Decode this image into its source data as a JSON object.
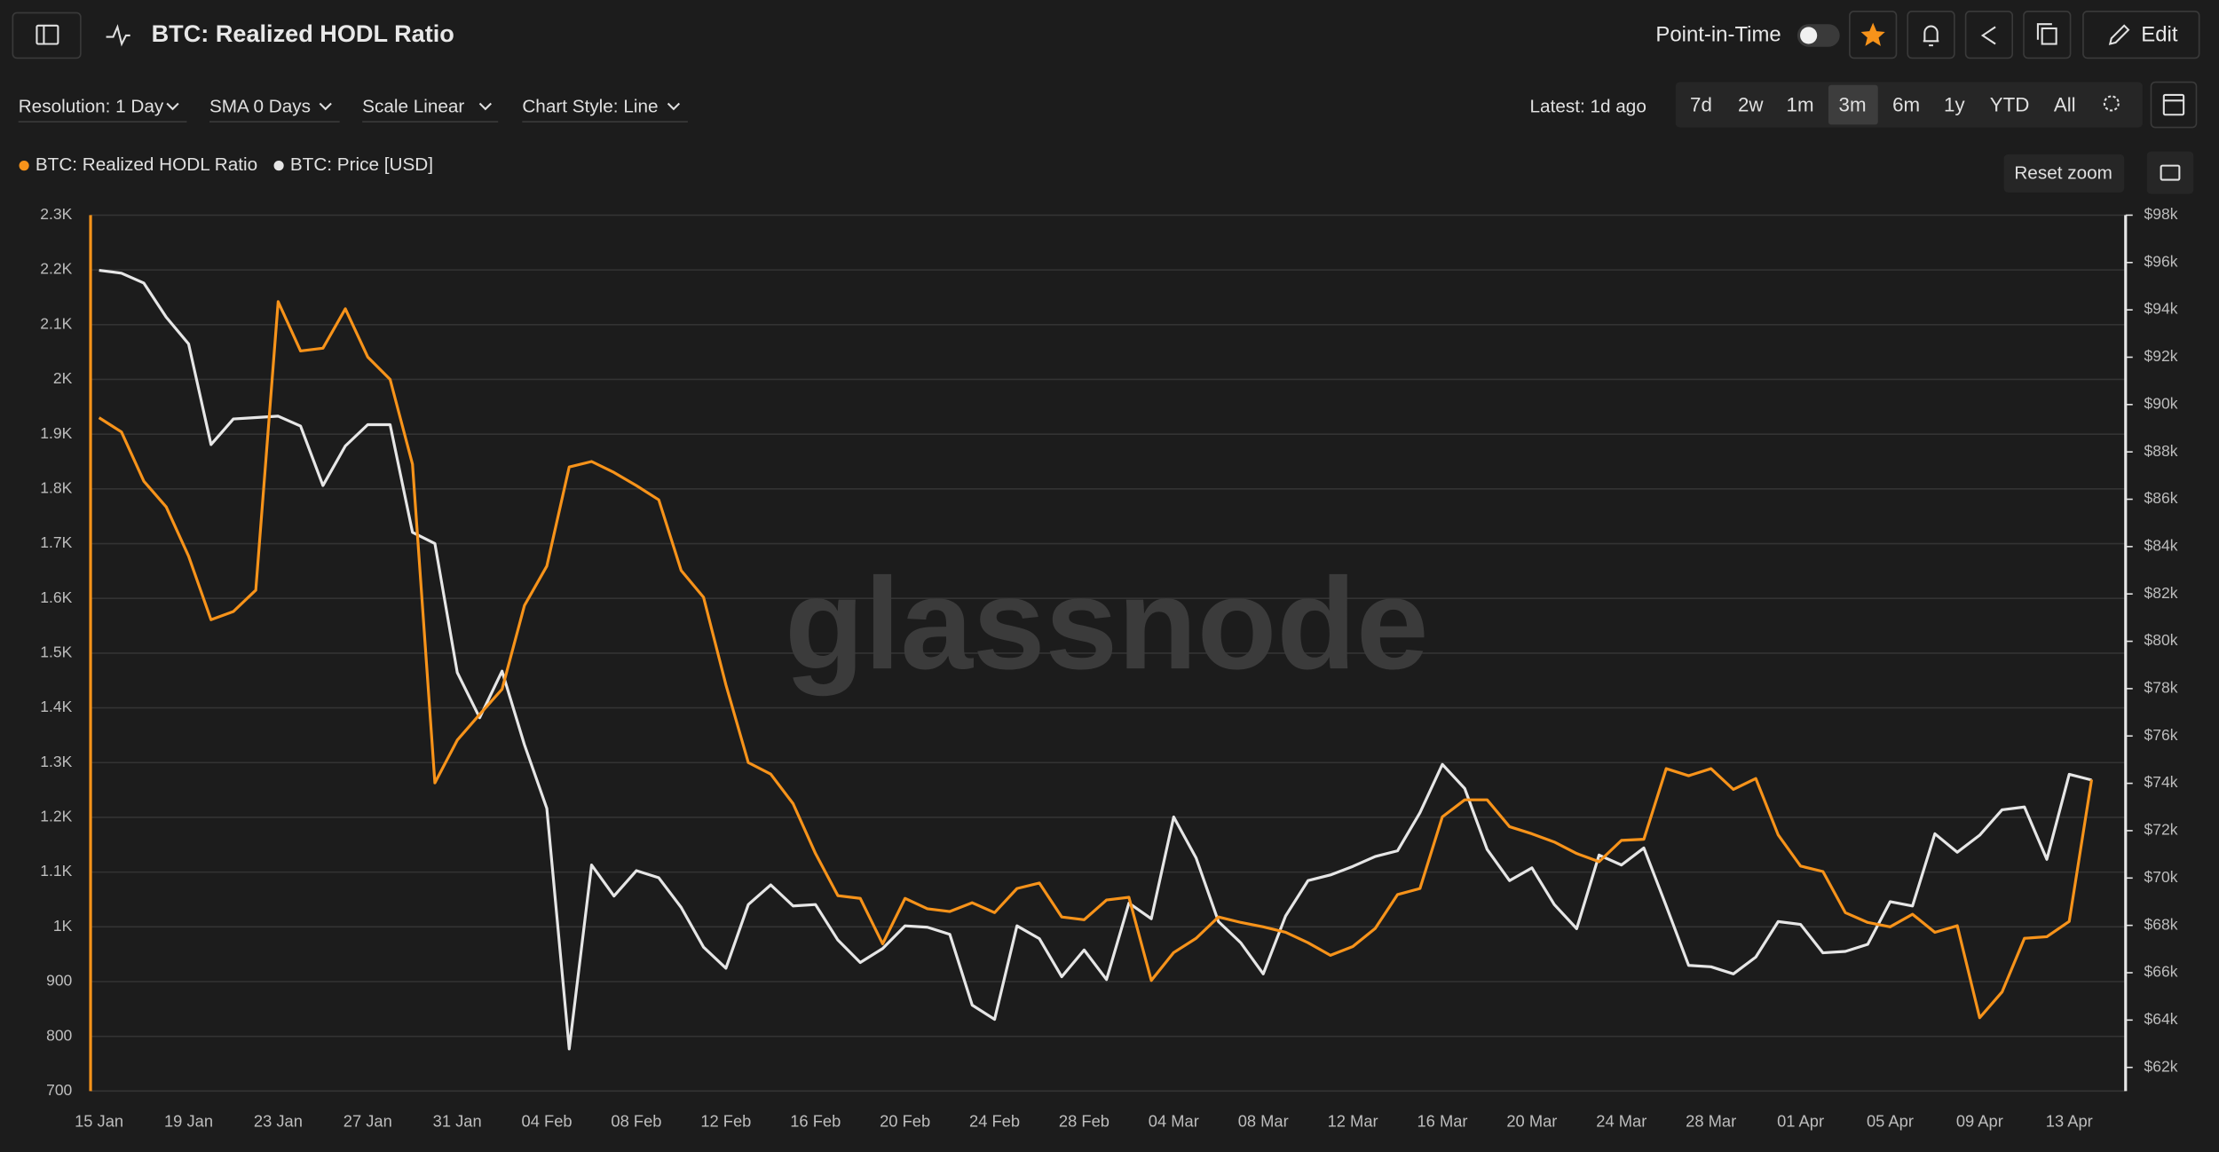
{
  "header": {
    "title": "BTC: Realized HODL Ratio",
    "point_in_time": "Point-in-Time",
    "edit": "Edit"
  },
  "toolbar": {
    "resolution": "Resolution: 1 Day",
    "sma": "SMA 0 Days",
    "scale": "Scale Linear",
    "chart_style": "Chart Style: Line",
    "latest": "Latest: 1d ago",
    "ranges": [
      "7d",
      "2w",
      "1m",
      "3m",
      "6m",
      "1y",
      "YTD",
      "All"
    ],
    "active_range": 3
  },
  "reset_zoom": "Reset zoom",
  "watermark": "glassnode",
  "chart_data": {
    "type": "line",
    "categories": [
      "15 Jan",
      null,
      null,
      null,
      "19 Jan",
      null,
      null,
      null,
      "23 Jan",
      null,
      null,
      null,
      "27 Jan",
      null,
      null,
      null,
      "31 Jan",
      null,
      null,
      null,
      "04 Feb",
      null,
      null,
      null,
      "08 Feb",
      null,
      null,
      null,
      "12 Feb",
      null,
      null,
      null,
      "16 Feb",
      null,
      null,
      null,
      "20 Feb",
      null,
      null,
      null,
      "24 Feb",
      null,
      null,
      null,
      "28 Feb",
      null,
      null,
      null,
      "04 Mar",
      null,
      null,
      null,
      "08 Mar",
      null,
      null,
      null,
      "12 Mar",
      null,
      null,
      null,
      "16 Mar",
      null,
      null,
      null,
      "20 Mar",
      null,
      null,
      null,
      "24 Mar",
      null,
      null,
      null,
      "28 Mar",
      null,
      null,
      null,
      "01 Apr",
      null,
      null,
      null,
      "05 Apr",
      null,
      null,
      null,
      "09 Apr",
      null,
      null,
      null,
      "13 Apr",
      null
    ],
    "series": [
      {
        "name": "BTC: Realized HODL Ratio",
        "color": "#f7931a",
        "axis": "y",
        "values": [
          1930,
          1904,
          1814,
          1767,
          1677,
          1561,
          1576,
          1615,
          2142,
          2052,
          2057,
          2129,
          2041,
          2000,
          1845,
          1263,
          1341,
          1388,
          1434,
          1587,
          1659,
          1840,
          1850,
          1830,
          1806,
          1780,
          1651,
          1602,
          1442,
          1300,
          1279,
          1225,
          1134,
          1057,
          1052,
          969,
          1052,
          1033,
          1028,
          1044,
          1026,
          1070,
          1080,
          1018,
          1013,
          1049,
          1054,
          902,
          953,
          979,
          1018,
          1008,
          1000,
          990,
          971,
          948,
          964,
          997,
          1059,
          1070,
          1201,
          1232,
          1232,
          1183,
          1170,
          1155,
          1134,
          1119,
          1158,
          1160,
          1289,
          1276,
          1289,
          1251,
          1271,
          1168,
          1111,
          1101,
          1026,
          1008,
          1000,
          1023,
          990,
          1002,
          834,
          881,
          979,
          982,
          1010,
          1269
        ]
      },
      {
        "name": "BTC: Price [USD]",
        "color": "#e6e6e6",
        "axis": "y2",
        "values": [
          95.67,
          95.55,
          95.13,
          93.69,
          92.56,
          88.31,
          89.39,
          89.45,
          89.51,
          89.09,
          86.58,
          88.25,
          89.15,
          89.15,
          84.6,
          84.13,
          78.68,
          76.77,
          78.74,
          75.63,
          72.94,
          62.78,
          70.55,
          69.24,
          70.31,
          70.01,
          68.76,
          67.08,
          66.19,
          68.88,
          69.71,
          68.82,
          68.88,
          67.38,
          66.43,
          67.02,
          67.98,
          67.92,
          67.62,
          64.63,
          64.03,
          67.98,
          67.44,
          65.83,
          66.96,
          65.71,
          68.94,
          68.28,
          72.58,
          70.85,
          68.16,
          67.26,
          65.95,
          68.4,
          69.89,
          70.13,
          70.49,
          70.91,
          71.15,
          72.76,
          74.8,
          73.78,
          71.21,
          69.89,
          70.43,
          68.88,
          67.86,
          70.97,
          70.55,
          71.27,
          68.82,
          66.31,
          66.25,
          65.95,
          66.66,
          68.16,
          68.04,
          66.84,
          66.9,
          67.2,
          69.0,
          68.82,
          71.87,
          71.09,
          71.81,
          72.88,
          73.0,
          70.79,
          74.38,
          74.14
        ]
      }
    ],
    "ylim": [
      700,
      2300
    ],
    "yticks": [
      700,
      800,
      900,
      {
        "value": 1000,
        "label": "1K"
      },
      {
        "value": 1100,
        "label": "1.1K"
      },
      {
        "value": 1200,
        "label": "1.2K"
      },
      {
        "value": 1300,
        "label": "1.3K"
      },
      {
        "value": 1400,
        "label": "1.4K"
      },
      {
        "value": 1500,
        "label": "1.5K"
      },
      {
        "value": 1600,
        "label": "1.6K"
      },
      {
        "value": 1700,
        "label": "1.7K"
      },
      {
        "value": 1800,
        "label": "1.8K"
      },
      {
        "value": 1900,
        "label": "1.9K"
      },
      {
        "value": 2000,
        "label": "2K"
      },
      {
        "value": 2100,
        "label": "2.1K"
      },
      {
        "value": 2200,
        "label": "2.2K"
      },
      {
        "value": 2300,
        "label": "2.3K"
      }
    ],
    "y2lim": [
      61,
      98
    ],
    "y2ticks": [
      {
        "value": 62,
        "label": "$62k"
      },
      {
        "value": 64,
        "label": "$64k"
      },
      {
        "value": 66,
        "label": "$66k"
      },
      {
        "value": 68,
        "label": "$68k"
      },
      {
        "value": 70,
        "label": "$70k"
      },
      {
        "value": 72,
        "label": "$72k"
      },
      {
        "value": 74,
        "label": "$74k"
      },
      {
        "value": 76,
        "label": "$76k"
      },
      {
        "value": 78,
        "label": "$78k"
      },
      {
        "value": 80,
        "label": "$80k"
      },
      {
        "value": 82,
        "label": "$82k"
      },
      {
        "value": 84,
        "label": "$84k"
      },
      {
        "value": 86,
        "label": "$86k"
      },
      {
        "value": 88,
        "label": "$88k"
      },
      {
        "value": 90,
        "label": "$90k"
      },
      {
        "value": 92,
        "label": "$92k"
      },
      {
        "value": 94,
        "label": "$94k"
      },
      {
        "value": 96,
        "label": "$96k"
      },
      {
        "value": 98,
        "label": "$98k"
      }
    ],
    "grid": true
  }
}
